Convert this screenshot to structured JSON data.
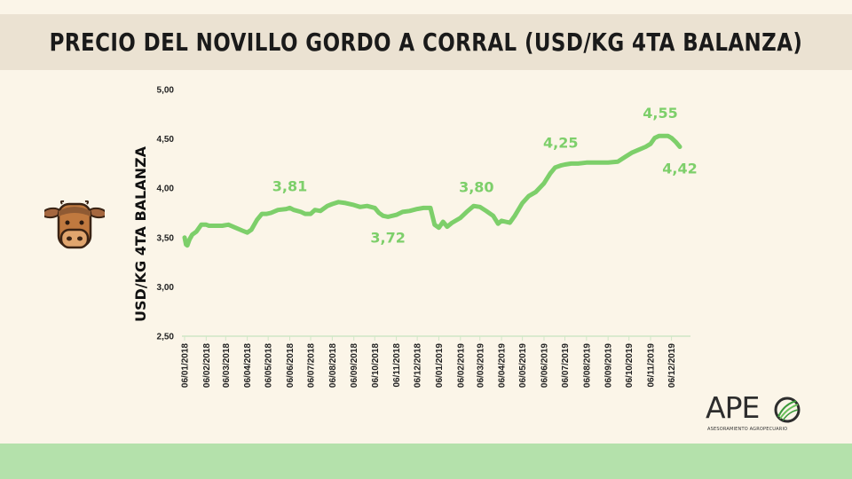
{
  "header": {
    "title": "PRECIO DEL NOVILLO GORDO A CORRAL (USD/KG 4TA BALANZA)"
  },
  "logo": {
    "name": "APE",
    "subtitle": "ASESORAMIENTO AGROPECUARIO"
  },
  "colors": {
    "line": "#7dcf6a",
    "title_bar": "#ebe2d2",
    "background": "#fbf5e8",
    "footer": "#b4e1ab"
  },
  "icons": {
    "decoration": "cow-face-icon",
    "logo_mark": "leaf-circle-icon"
  },
  "chart_data": {
    "type": "line",
    "title": "PRECIO DEL NOVILLO GORDO A CORRAL (USD/KG 4TA BALANZA)",
    "ylabel": "USD/KG 4TA BALANZA",
    "xlabel": "",
    "ylim": [
      2.5,
      5.0
    ],
    "yticks": [
      "5,00",
      "4,50",
      "4,00",
      "3,50",
      "3,00",
      "2,50"
    ],
    "ytick_values": [
      5.0,
      4.5,
      4.0,
      3.5,
      3.0,
      2.5
    ],
    "x_start": "2018-01-06",
    "xticks": [
      "06/01/2018",
      "06/02/2018",
      "06/03/2018",
      "06/04/2018",
      "06/05/2018",
      "06/06/2018",
      "06/07/2018",
      "06/08/2018",
      "06/09/2018",
      "06/10/2018",
      "06/11/2018",
      "06/12/2018",
      "06/01/2019",
      "06/02/2019",
      "06/03/2019",
      "06/04/2019",
      "06/05/2019",
      "06/06/2019",
      "06/07/2019",
      "06/08/2019",
      "06/09/2019",
      "06/10/2019",
      "06/11/2019",
      "06/12/2019"
    ],
    "grid": false,
    "legend": "none",
    "series": [
      {
        "points": [
          [
            "2018-01-06",
            3.5
          ],
          [
            "2018-01-08",
            3.43
          ],
          [
            "2018-01-10",
            3.42
          ],
          [
            "2018-01-13",
            3.48
          ],
          [
            "2018-01-17",
            3.53
          ],
          [
            "2018-01-23",
            3.56
          ],
          [
            "2018-01-30",
            3.63
          ],
          [
            "2018-02-06",
            3.63
          ],
          [
            "2018-02-10",
            3.62
          ],
          [
            "2018-02-20",
            3.62
          ],
          [
            "2018-03-01",
            3.62
          ],
          [
            "2018-03-10",
            3.63
          ],
          [
            "2018-03-20",
            3.6
          ],
          [
            "2018-03-30",
            3.57
          ],
          [
            "2018-04-06",
            3.55
          ],
          [
            "2018-04-12",
            3.58
          ],
          [
            "2018-04-20",
            3.68
          ],
          [
            "2018-04-27",
            3.74
          ],
          [
            "2018-05-04",
            3.74
          ],
          [
            "2018-05-10",
            3.75
          ],
          [
            "2018-05-20",
            3.78
          ],
          [
            "2018-06-01",
            3.79
          ],
          [
            "2018-06-06",
            3.8
          ],
          [
            "2018-06-12",
            3.78
          ],
          [
            "2018-06-22",
            3.76
          ],
          [
            "2018-06-28",
            3.74
          ],
          [
            "2018-07-06",
            3.74
          ],
          [
            "2018-07-12",
            3.78
          ],
          [
            "2018-07-20",
            3.77
          ],
          [
            "2018-07-30",
            3.82
          ],
          [
            "2018-08-06",
            3.84
          ],
          [
            "2018-08-15",
            3.86
          ],
          [
            "2018-08-25",
            3.85
          ],
          [
            "2018-09-06",
            3.83
          ],
          [
            "2018-09-15",
            3.81
          ],
          [
            "2018-09-25",
            3.82
          ],
          [
            "2018-10-06",
            3.8
          ],
          [
            "2018-10-12",
            3.75
          ],
          [
            "2018-10-18",
            3.72
          ],
          [
            "2018-10-25",
            3.71
          ],
          [
            "2018-11-06",
            3.73
          ],
          [
            "2018-11-15",
            3.76
          ],
          [
            "2018-11-25",
            3.77
          ],
          [
            "2018-12-06",
            3.79
          ],
          [
            "2018-12-15",
            3.8
          ],
          [
            "2018-12-25",
            3.8
          ],
          [
            "2018-12-31",
            3.63
          ],
          [
            "2019-01-06",
            3.6
          ],
          [
            "2019-01-12",
            3.66
          ],
          [
            "2019-01-18",
            3.61
          ],
          [
            "2019-01-25",
            3.65
          ],
          [
            "2019-02-06",
            3.7
          ],
          [
            "2019-02-15",
            3.76
          ],
          [
            "2019-02-25",
            3.82
          ],
          [
            "2019-03-06",
            3.81
          ],
          [
            "2019-03-15",
            3.77
          ],
          [
            "2019-03-25",
            3.72
          ],
          [
            "2019-04-01",
            3.64
          ],
          [
            "2019-04-06",
            3.67
          ],
          [
            "2019-04-12",
            3.66
          ],
          [
            "2019-04-18",
            3.65
          ],
          [
            "2019-04-25",
            3.72
          ],
          [
            "2019-05-06",
            3.85
          ],
          [
            "2019-05-15",
            3.92
          ],
          [
            "2019-05-25",
            3.96
          ],
          [
            "2019-06-06",
            4.05
          ],
          [
            "2019-06-15",
            4.15
          ],
          [
            "2019-06-22",
            4.21
          ],
          [
            "2019-06-30",
            4.23
          ],
          [
            "2019-07-06",
            4.24
          ],
          [
            "2019-07-15",
            4.25
          ],
          [
            "2019-07-25",
            4.25
          ],
          [
            "2019-08-06",
            4.26
          ],
          [
            "2019-08-15",
            4.26
          ],
          [
            "2019-08-25",
            4.26
          ],
          [
            "2019-09-06",
            4.26
          ],
          [
            "2019-09-20",
            4.27
          ],
          [
            "2019-10-01",
            4.32
          ],
          [
            "2019-10-10",
            4.36
          ],
          [
            "2019-10-20",
            4.39
          ],
          [
            "2019-10-30",
            4.42
          ],
          [
            "2019-11-06",
            4.45
          ],
          [
            "2019-11-12",
            4.51
          ],
          [
            "2019-11-18",
            4.53
          ],
          [
            "2019-11-25",
            4.53
          ],
          [
            "2019-12-01",
            4.53
          ],
          [
            "2019-12-06",
            4.51
          ],
          [
            "2019-12-12",
            4.47
          ],
          [
            "2019-12-18",
            4.42
          ]
        ]
      }
    ],
    "annotations": [
      {
        "text": "3,81",
        "x": "2018-06-06",
        "y": 3.81,
        "position": "above"
      },
      {
        "text": "3,72",
        "x": "2018-10-25",
        "y": 3.72,
        "position": "below"
      },
      {
        "text": "3,80",
        "x": "2019-03-01",
        "y": 3.8,
        "position": "above"
      },
      {
        "text": "4,25",
        "x": "2019-06-30",
        "y": 4.25,
        "position": "above"
      },
      {
        "text": "4,55",
        "x": "2019-11-20",
        "y": 4.55,
        "position": "above"
      },
      {
        "text": "4,42",
        "x": "2019-12-18",
        "y": 4.42,
        "position": "below"
      }
    ]
  }
}
